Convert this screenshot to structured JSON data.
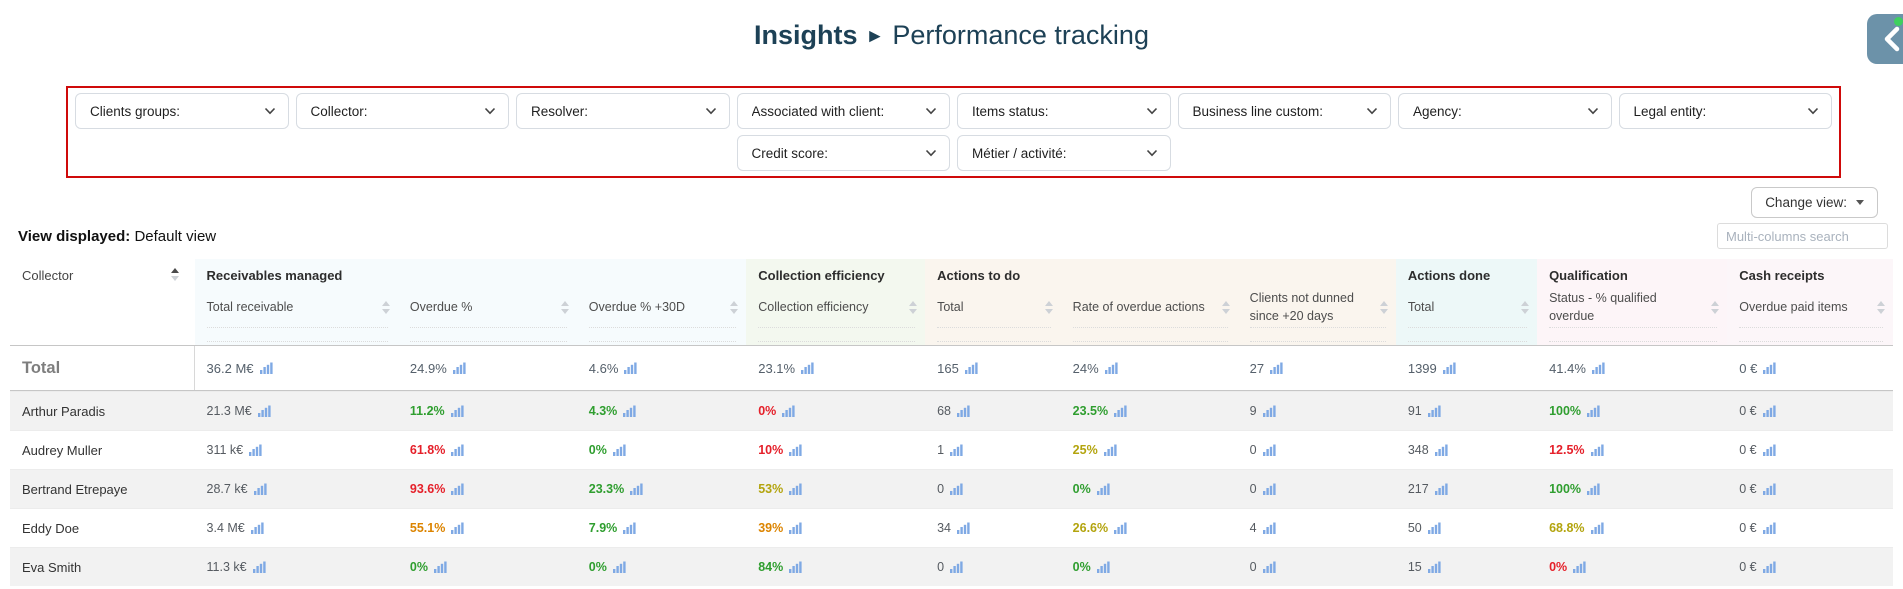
{
  "page": {
    "title_primary": "Insights",
    "title_separator": "►",
    "title_secondary": "Performance tracking"
  },
  "filters": {
    "row1": [
      "Clients groups:",
      "Collector:",
      "Resolver:",
      "Associated with client:",
      "Items status:",
      "Business line custom:",
      "Agency:",
      "Legal entity:"
    ],
    "row2": [
      "Credit score:",
      "Métier / activité:"
    ]
  },
  "toolbar": {
    "change_view_label": "Change view:",
    "view_displayed_label": "View displayed:",
    "view_displayed_value": "Default view",
    "search_placeholder": "Multi-columns search"
  },
  "table": {
    "groups": [
      {
        "label": "",
        "span": 1,
        "color": "transparent"
      },
      {
        "label": "Receivables managed",
        "span": 3,
        "color": "#f6fbfd"
      },
      {
        "label": "Collection efficiency",
        "span": 1,
        "color": "#f3f8ef"
      },
      {
        "label": "Actions to do",
        "span": 3,
        "color": "#faf5ee"
      },
      {
        "label": "Actions done",
        "span": 1,
        "color": "#edf8f8"
      },
      {
        "label": "Qualification",
        "span": 1,
        "color": "#fdf5f8"
      },
      {
        "label": "Cash receipts",
        "span": 1,
        "color": "#fcf6f9"
      }
    ],
    "columns": [
      {
        "label": "Collector",
        "width": 9.8,
        "group": 0,
        "sorted": "asc"
      },
      {
        "label": "Total receivable",
        "width": 10.8,
        "group": 1
      },
      {
        "label": "Overdue %",
        "width": 9.5,
        "group": 1
      },
      {
        "label": "Overdue % +30D",
        "width": 9.0,
        "group": 1
      },
      {
        "label": "Collection efficiency",
        "width": 9.5,
        "group": 2
      },
      {
        "label": "Total",
        "width": 7.2,
        "group": 3
      },
      {
        "label": "Rate of overdue actions",
        "width": 9.4,
        "group": 3
      },
      {
        "label": "Clients not dunned since +20 days",
        "width": 8.4,
        "group": 3
      },
      {
        "label": "Total",
        "width": 7.5,
        "group": 4
      },
      {
        "label": "Status - % qualified overdue",
        "width": 10.1,
        "group": 5
      },
      {
        "label": "Overdue paid items",
        "width": 8.8,
        "group": 6
      }
    ],
    "rows": [
      {
        "name": "Total",
        "total": true,
        "cells": [
          [
            "36.2 M€",
            "default"
          ],
          [
            "24.9%",
            "default"
          ],
          [
            "4.6%",
            "default"
          ],
          [
            "23.1%",
            "default"
          ],
          [
            "165",
            "default"
          ],
          [
            "24%",
            "default"
          ],
          [
            "27",
            "default"
          ],
          [
            "1399",
            "default"
          ],
          [
            "41.4%",
            "default"
          ],
          [
            "0 €",
            "default"
          ]
        ]
      },
      {
        "name": "Arthur Paradis",
        "cells": [
          [
            "21.3 M€",
            "default"
          ],
          [
            "11.2%",
            "green"
          ],
          [
            "4.3%",
            "green"
          ],
          [
            "0%",
            "red"
          ],
          [
            "68",
            "default"
          ],
          [
            "23.5%",
            "green"
          ],
          [
            "9",
            "default"
          ],
          [
            "91",
            "default"
          ],
          [
            "100%",
            "green"
          ],
          [
            "0 €",
            "default"
          ]
        ]
      },
      {
        "name": "Audrey Muller",
        "cells": [
          [
            "311 k€",
            "default"
          ],
          [
            "61.8%",
            "red"
          ],
          [
            "0%",
            "green"
          ],
          [
            "10%",
            "red"
          ],
          [
            "1",
            "default"
          ],
          [
            "25%",
            "yellow"
          ],
          [
            "0",
            "default"
          ],
          [
            "348",
            "default"
          ],
          [
            "12.5%",
            "red"
          ],
          [
            "0 €",
            "default"
          ]
        ]
      },
      {
        "name": "Bertrand Etrepaye",
        "cells": [
          [
            "28.7 k€",
            "default"
          ],
          [
            "93.6%",
            "red"
          ],
          [
            "23.3%",
            "green"
          ],
          [
            "53%",
            "yellow"
          ],
          [
            "0",
            "default"
          ],
          [
            "0%",
            "green"
          ],
          [
            "0",
            "default"
          ],
          [
            "217",
            "default"
          ],
          [
            "100%",
            "green"
          ],
          [
            "0 €",
            "default"
          ]
        ]
      },
      {
        "name": "Eddy Doe",
        "cells": [
          [
            "3.4 M€",
            "default"
          ],
          [
            "55.1%",
            "orange"
          ],
          [
            "7.9%",
            "green"
          ],
          [
            "39%",
            "orange"
          ],
          [
            "34",
            "default"
          ],
          [
            "26.6%",
            "yellow"
          ],
          [
            "4",
            "default"
          ],
          [
            "50",
            "default"
          ],
          [
            "68.8%",
            "yellow"
          ],
          [
            "0 €",
            "default"
          ]
        ]
      },
      {
        "name": "Eva Smith",
        "cells": [
          [
            "11.3 k€",
            "default"
          ],
          [
            "0%",
            "green"
          ],
          [
            "0%",
            "green"
          ],
          [
            "84%",
            "green"
          ],
          [
            "0",
            "default"
          ],
          [
            "0%",
            "green"
          ],
          [
            "0",
            "default"
          ],
          [
            "15",
            "default"
          ],
          [
            "0%",
            "red"
          ],
          [
            "0 €",
            "default"
          ]
        ]
      }
    ]
  },
  "colors": {
    "green": "#2f9e2f",
    "red": "#e5202a",
    "yellow": "#b3a40e",
    "orange": "#dc8400",
    "title": "#1d4156",
    "filters_border": "#cf0a0a",
    "bar_icon": "#7fa9e4",
    "fab_background": "#6c92a9",
    "fab_badge": "#3ed05e"
  },
  "icons": {
    "filter_chevron": "chevron-down-icon",
    "value_chart": "bar-chart-icon",
    "fab_chevron": "chevron-left-icon"
  }
}
